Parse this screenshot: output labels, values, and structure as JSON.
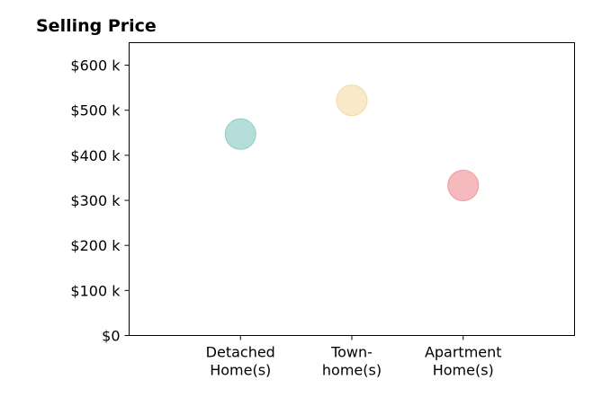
{
  "chart_data": {
    "type": "scatter",
    "title": "Selling Price",
    "xlabel": "",
    "ylabel": "",
    "categories": [
      [
        "Detached",
        "Home(s)"
      ],
      [
        "Town-",
        "home(s)"
      ],
      [
        "Apartment",
        "Home(s)"
      ]
    ],
    "values": [
      447000,
      522000,
      333000
    ],
    "colors": [
      "#a8d8d3",
      "#f8e5bf",
      "#f5aeb3"
    ],
    "point_edge_colors": [
      "#8ccbc4",
      "#f3d9a6",
      "#ee9aa0"
    ],
    "ylim": [
      0,
      650000
    ],
    "yticks": [
      0,
      100000,
      200000,
      300000,
      400000,
      500000,
      600000
    ],
    "ytick_labels": [
      "$0",
      "$100 k",
      "$200 k",
      "$300 k",
      "$400 k",
      "$500 k",
      "$600 k"
    ],
    "xlim": [
      -1,
      3
    ],
    "grid": false,
    "legend": false
  }
}
